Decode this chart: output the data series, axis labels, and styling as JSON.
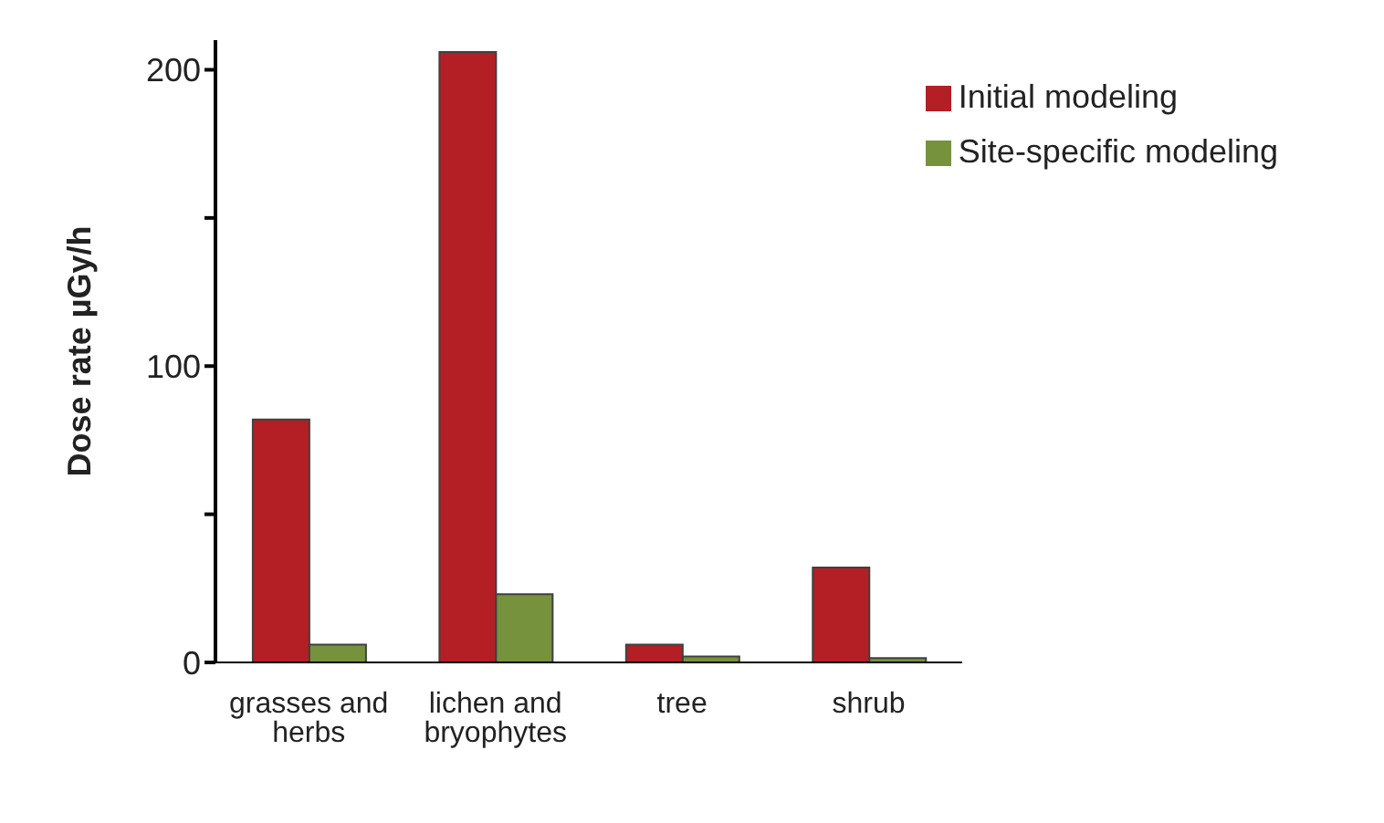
{
  "chart_data": {
    "type": "bar",
    "ylabel": "Dose rate µGy/h",
    "categories": [
      "grasses and herbs",
      "lichen and bryophytes",
      "tree",
      "shrub"
    ],
    "series": [
      {
        "name": "Initial modeling",
        "color": "#b31f24",
        "values": [
          82,
          206,
          6,
          32
        ]
      },
      {
        "name": "Site-specific modeling",
        "color": "#76923c",
        "values": [
          6,
          23,
          2,
          1.5
        ]
      }
    ],
    "ylim": [
      0,
      210
    ],
    "yticks": [
      0,
      {
        "value": 50,
        "label": null
      },
      100,
      {
        "value": 150,
        "label": null
      },
      200
    ],
    "grid": false,
    "legend": "top right"
  }
}
